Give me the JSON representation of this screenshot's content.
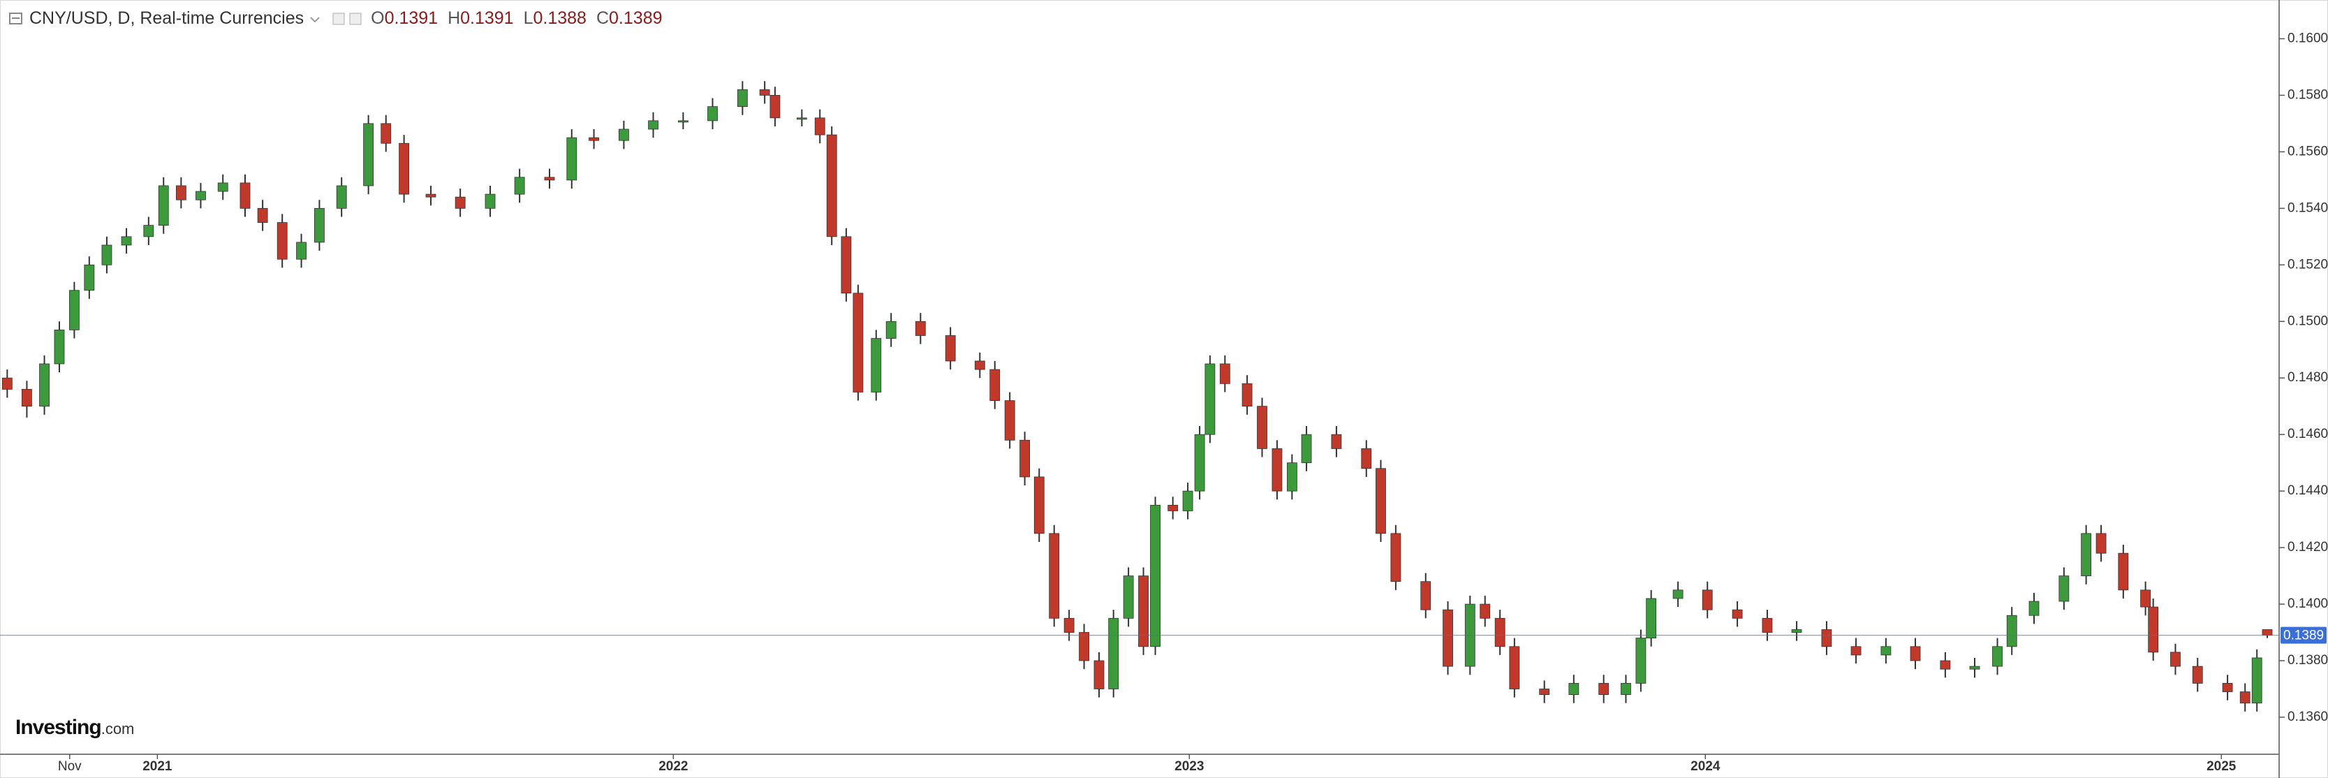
{
  "header": {
    "symbol": "CNY/USD, D, Real-time Currencies",
    "ohlc_letters": [
      "O",
      "H",
      "L",
      "C"
    ]
  },
  "watermark": {
    "brand": "Investing",
    "suffix": ".com"
  },
  "chart_data": {
    "type": "candlestick",
    "up_color": "#3c9a3c",
    "down_color": "#c0392b",
    "last_price_color": "#3b6fd8",
    "xlim": [
      2020.695,
      2025.112
    ],
    "xticks": [
      {
        "value": 2020.83,
        "label": "Nov"
      },
      2021,
      2022,
      2023,
      2024,
      2025
    ],
    "ylim": [
      0.13469,
      0.16137
    ],
    "yticks": [
      {
        "value": 0.136,
        "label": "0.1360"
      },
      {
        "value": 0.138,
        "label": "0.1380"
      },
      {
        "value": 0.14,
        "label": "0.1400"
      },
      {
        "value": 0.142,
        "label": "0.1420"
      },
      {
        "value": 0.144,
        "label": "0.1440"
      },
      {
        "value": 0.146,
        "label": "0.1460"
      },
      {
        "value": 0.148,
        "label": "0.1480"
      },
      {
        "value": 0.15,
        "label": "0.1500"
      },
      {
        "value": 0.152,
        "label": "0.1520"
      },
      {
        "value": 0.154,
        "label": "0.1540"
      },
      {
        "value": 0.156,
        "label": "0.1560"
      },
      {
        "value": 0.158,
        "label": "0.1580"
      },
      {
        "value": 0.16,
        "label": "0.1600"
      }
    ],
    "grid": false,
    "x": [
      2020.709,
      2020.747,
      2020.781,
      2020.81,
      2020.839,
      2020.868,
      2020.902,
      2020.94,
      2020.983,
      2021.012,
      2021.046,
      2021.084,
      2021.127,
      2021.17,
      2021.204,
      2021.242,
      2021.279,
      2021.314,
      2021.357,
      2021.409,
      2021.443,
      2021.478,
      2021.53,
      2021.587,
      2021.645,
      2021.702,
      2021.76,
      2021.803,
      2021.846,
      2021.904,
      2021.961,
      2022.019,
      2022.076,
      2022.134,
      2022.177,
      2022.197,
      2022.249,
      2022.284,
      2022.307,
      2022.335,
      2022.358,
      2022.393,
      2022.422,
      2022.479,
      2022.537,
      2022.594,
      2022.623,
      2022.652,
      2022.681,
      2022.709,
      2022.738,
      2022.767,
      2022.796,
      2022.825,
      2022.853,
      2022.882,
      2022.911,
      2022.934,
      2022.968,
      2022.997,
      2023.02,
      2023.04,
      2023.069,
      2023.112,
      2023.141,
      2023.17,
      2023.199,
      2023.227,
      2023.285,
      2023.343,
      2023.371,
      2023.4,
      2023.458,
      2023.501,
      2023.544,
      2023.573,
      2023.602,
      2023.63,
      2023.688,
      2023.745,
      2023.803,
      2023.846,
      2023.875,
      2023.895,
      2023.947,
      2024.004,
      2024.062,
      2024.12,
      2024.177,
      2024.235,
      2024.292,
      2024.35,
      2024.407,
      2024.465,
      2024.522,
      2024.566,
      2024.594,
      2024.637,
      2024.695,
      2024.738,
      2024.767,
      2024.81,
      2024.853,
      2024.868,
      2024.911,
      2024.954,
      2025.012,
      2025.046,
      2025.069,
      2025.089
    ],
    "open": [
      0.148,
      0.1476,
      0.147,
      0.1485,
      0.1497,
      0.1511,
      0.152,
      0.1527,
      0.153,
      0.1534,
      0.1548,
      0.1543,
      0.1546,
      0.1549,
      0.154,
      0.1535,
      0.1522,
      0.1528,
      0.154,
      0.1548,
      0.157,
      0.1563,
      0.1545,
      0.1544,
      0.154,
      0.1545,
      0.1551,
      0.155,
      0.1565,
      0.1564,
      0.1568,
      0.1571,
      0.1571,
      0.1576,
      0.1582,
      0.158,
      0.1572,
      0.1572,
      0.1566,
      0.153,
      0.151,
      0.1475,
      0.1494,
      0.15,
      0.1495,
      0.1486,
      0.1483,
      0.1472,
      0.1458,
      0.1445,
      0.1425,
      0.1395,
      0.139,
      0.138,
      0.137,
      0.1395,
      0.141,
      0.1385,
      0.1435,
      0.1433,
      0.144,
      0.146,
      0.1485,
      0.1478,
      0.147,
      0.1455,
      0.144,
      0.145,
      0.146,
      0.1455,
      0.1448,
      0.1425,
      0.1408,
      0.1398,
      0.1378,
      0.14,
      0.1395,
      0.1385,
      0.137,
      0.1368,
      0.1372,
      0.1368,
      0.1372,
      0.1388,
      0.1402,
      0.1405,
      0.1398,
      0.1395,
      0.139,
      0.1391,
      0.1385,
      0.1382,
      0.1385,
      0.138,
      0.1377,
      0.1378,
      0.1385,
      0.1396,
      0.1401,
      0.141,
      0.1425,
      0.1418,
      0.1405,
      0.1399,
      0.1383,
      0.1378,
      0.1372,
      0.1369,
      0.1365,
      0.1391
    ],
    "high": [
      0.1483,
      0.1479,
      0.1488,
      0.15,
      0.1514,
      0.1523,
      0.153,
      0.1533,
      0.1537,
      0.1551,
      0.1551,
      0.1549,
      0.1552,
      0.1552,
      0.1543,
      0.1538,
      0.1531,
      0.1543,
      0.1551,
      0.1573,
      0.1573,
      0.1566,
      0.1548,
      0.1547,
      0.1548,
      0.1554,
      0.1554,
      0.1568,
      0.1568,
      0.1571,
      0.1574,
      0.1574,
      0.1579,
      0.1585,
      0.1585,
      0.1583,
      0.1575,
      0.1575,
      0.1569,
      0.1533,
      0.1513,
      0.1497,
      0.1503,
      0.1503,
      0.1498,
      0.1489,
      0.1486,
      0.1475,
      0.1461,
      0.1448,
      0.1428,
      0.1398,
      0.1393,
      0.1383,
      0.1398,
      0.1413,
      0.1413,
      0.1438,
      0.1438,
      0.1443,
      0.1463,
      0.1488,
      0.1488,
      0.1481,
      0.1473,
      0.1458,
      0.1453,
      0.1463,
      0.1463,
      0.1458,
      0.1451,
      0.1428,
      0.1411,
      0.1401,
      0.1403,
      0.1403,
      0.1398,
      0.1388,
      0.1373,
      0.1375,
      0.1375,
      0.1375,
      0.1391,
      0.1405,
      0.1408,
      0.1408,
      0.1401,
      0.1398,
      0.1394,
      0.1394,
      0.1388,
      0.1388,
      0.1388,
      0.1383,
      0.1381,
      0.1388,
      0.1399,
      0.1404,
      0.1413,
      0.1428,
      0.1428,
      0.1421,
      0.1408,
      0.1402,
      0.1386,
      0.1381,
      0.1375,
      0.1372,
      0.1384,
      0.1391
    ],
    "low": [
      0.1473,
      0.1466,
      0.1467,
      0.1482,
      0.1494,
      0.1508,
      0.1517,
      0.1524,
      0.1527,
      0.1531,
      0.154,
      0.154,
      0.1543,
      0.1537,
      0.1532,
      0.1519,
      0.1519,
      0.1525,
      0.1537,
      0.1545,
      0.156,
      0.1542,
      0.1541,
      0.1537,
      0.1537,
      0.1542,
      0.1547,
      0.1547,
      0.1561,
      0.1561,
      0.1565,
      0.1568,
      0.1568,
      0.1573,
      0.1577,
      0.1569,
      0.1569,
      0.1563,
      0.1527,
      0.1507,
      0.1472,
      0.1472,
      0.1491,
      0.1492,
      0.1483,
      0.148,
      0.1469,
      0.1455,
      0.1442,
      0.1422,
      0.1392,
      0.1387,
      0.1377,
      0.1367,
      0.1367,
      0.1392,
      0.1382,
      0.1382,
      0.143,
      0.143,
      0.1437,
      0.1457,
      0.1475,
      0.1467,
      0.1452,
      0.1437,
      0.1437,
      0.1447,
      0.1452,
      0.1445,
      0.1422,
      0.1405,
      0.1395,
      0.1375,
      0.1375,
      0.1392,
      0.1382,
      0.1367,
      0.1365,
      0.1365,
      0.1365,
      0.1365,
      0.1369,
      0.1385,
      0.1399,
      0.1395,
      0.1392,
      0.1387,
      0.1387,
      0.1382,
      0.1379,
      0.1379,
      0.1377,
      0.1374,
      0.1374,
      0.1375,
      0.1382,
      0.1393,
      0.1398,
      0.1407,
      0.1415,
      0.1402,
      0.1396,
      0.138,
      0.1375,
      0.1369,
      0.1366,
      0.1362,
      0.1362,
      0.1388
    ],
    "close": [
      0.1476,
      0.147,
      0.1485,
      0.1497,
      0.1511,
      0.152,
      0.1527,
      0.153,
      0.1534,
      0.1548,
      0.1543,
      0.1546,
      0.1549,
      0.154,
      0.1535,
      0.1522,
      0.1528,
      0.154,
      0.1548,
      0.157,
      0.1563,
      0.1545,
      0.1544,
      0.154,
      0.1545,
      0.1551,
      0.155,
      0.1565,
      0.1564,
      0.1568,
      0.1571,
      0.1571,
      0.1576,
      0.1582,
      0.158,
      0.1572,
      0.1572,
      0.1566,
      0.153,
      0.151,
      0.1475,
      0.1494,
      0.15,
      0.1495,
      0.1486,
      0.1483,
      0.1472,
      0.1458,
      0.1445,
      0.1425,
      0.1395,
      0.139,
      0.138,
      0.137,
      0.1395,
      0.141,
      0.1385,
      0.1435,
      0.1433,
      0.144,
      0.146,
      0.1485,
      0.1478,
      0.147,
      0.1455,
      0.144,
      0.145,
      0.146,
      0.1455,
      0.1448,
      0.1425,
      0.1408,
      0.1398,
      0.1378,
      0.14,
      0.1395,
      0.1385,
      0.137,
      0.1368,
      0.1372,
      0.1368,
      0.1372,
      0.1388,
      0.1402,
      0.1405,
      0.1398,
      0.1395,
      0.139,
      0.1391,
      0.1385,
      0.1382,
      0.1385,
      0.138,
      0.1377,
      0.1378,
      0.1385,
      0.1396,
      0.1401,
      0.141,
      0.1425,
      0.1418,
      0.1405,
      0.1399,
      0.1383,
      0.1378,
      0.1372,
      0.1369,
      0.1365,
      0.1381,
      0.1389
    ]
  }
}
